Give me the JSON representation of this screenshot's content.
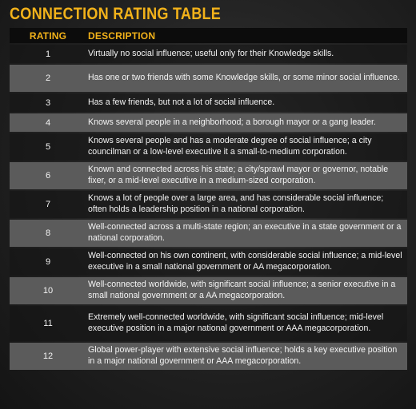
{
  "title": "CONNECTION RATING TABLE",
  "table": {
    "headers": {
      "rating": "RATING",
      "description": "DESCRIPTION"
    },
    "rows": [
      {
        "rating": "1",
        "description": "Virtually no social influence; useful only for their Knowledge skills."
      },
      {
        "rating": "2",
        "description": "Has one or two friends with some Knowledge skills, or some minor social influence."
      },
      {
        "rating": "3",
        "description": "Has a few friends, but not a lot of social influence."
      },
      {
        "rating": "4",
        "description": "Knows several people in a neighborhood; a borough mayor or a gang leader."
      },
      {
        "rating": "5",
        "description": "Knows several people and has a moderate degree of social influence; a city councilman or a low-level executive it a small-to-medium corporation."
      },
      {
        "rating": "6",
        "description": "Known and connected across his state; a city/sprawl mayor or governor, notable fixer, or a mid-level executive in a medium-sized corporation."
      },
      {
        "rating": "7",
        "description": "Knows a lot of people over a large area, and has considerable social influence; often holds a leadership position in a national corporation."
      },
      {
        "rating": "8",
        "description": "Well-connected across a multi-state region; an executive in a state government or a national corporation."
      },
      {
        "rating": "9",
        "description": "Well-connected on his own continent, with considerable social influence; a mid-level executive in a small national government or AA megacorporation."
      },
      {
        "rating": "10",
        "description": "Well-connected worldwide, with significant social influence; a senior executive in a small national government or a AA megacorporation."
      },
      {
        "rating": "11",
        "description": "Extremely well-connected worldwide, with significant social influence; mid-level executive position in a major national government or AAA megacorporation."
      },
      {
        "rating": "12",
        "description": "Global power-player with extensive social influence; holds a key executive position in a major national government or AAA megacorporation."
      }
    ]
  },
  "colors": {
    "accent": "#f2b21a",
    "header_bg": "#0c0c0c",
    "row_alt_bg": "#5b5b5b",
    "text": "#f4f4f4"
  }
}
